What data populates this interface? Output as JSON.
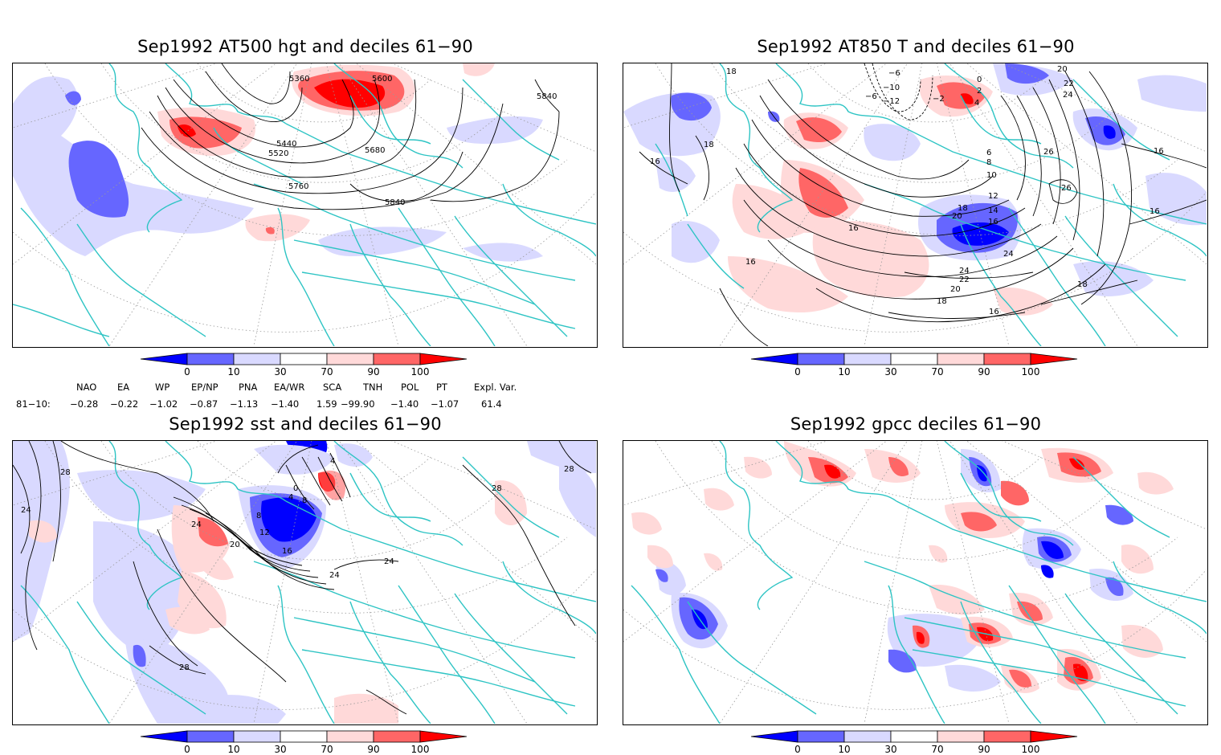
{
  "panels": [
    {
      "title": "Sep1992 AT500 hgt and deciles 61−90",
      "contour_labels": [
        "5360",
        "5600",
        "5440",
        "5520",
        "5680",
        "5760",
        "5840",
        "5840"
      ]
    },
    {
      "title": "Sep1992 AT850 T and deciles 61−90",
      "contour_labels": [
        "18",
        "16",
        "18",
        "−6",
        "−6",
        "−10",
        "−12",
        "−2",
        "0",
        "2",
        "4",
        "6",
        "8",
        "10",
        "12",
        "14",
        "16",
        "18",
        "20",
        "20",
        "22",
        "22",
        "24",
        "24",
        "26",
        "26",
        "24",
        "20",
        "18",
        "16",
        "16",
        "16",
        "16",
        "16",
        "18"
      ]
    },
    {
      "title": "Sep1992 sst and deciles 61−90",
      "contour_labels": [
        "28",
        "24",
        "24",
        "20",
        "12",
        "8",
        "4",
        "0",
        "4",
        "8",
        "16",
        "24",
        "24",
        "28",
        "28",
        "28"
      ]
    },
    {
      "title": "Sep1992 gpcc deciles 61−90",
      "contour_labels": []
    }
  ],
  "colorbar": {
    "ticks": [
      "0",
      "10",
      "30",
      "70",
      "90",
      "100"
    ],
    "colors": [
      "#0000ff",
      "#6666ff",
      "#d9d9ff",
      "#ffffff",
      "#ffd9d9",
      "#ff6666",
      "#ff0000"
    ]
  },
  "indices": {
    "headers": [
      "NAO",
      "EA",
      "WP",
      "EP/NP",
      "PNA",
      "EA/WR",
      "SCA",
      "TNH",
      "POL",
      "PT",
      "Expl. Var."
    ],
    "row_label": "81−10:",
    "values": [
      "−0.28",
      "−0.22",
      "−1.02",
      "−0.87",
      "−1.13",
      "−1.40",
      "1.59",
      "−99.90",
      "−1.40",
      "−1.07",
      "61.4"
    ]
  },
  "map_style": {
    "coast_color": "#2ec4c4",
    "grid_color": "#9a9a9a",
    "contour_color": "#000000",
    "shading": {
      "strong_blue": "#0000ff",
      "mid_blue": "#6666ff",
      "light_blue": "#d9d9ff",
      "light_red": "#ffd9d9",
      "mid_red": "#ff6666",
      "strong_red": "#ff0000"
    }
  }
}
